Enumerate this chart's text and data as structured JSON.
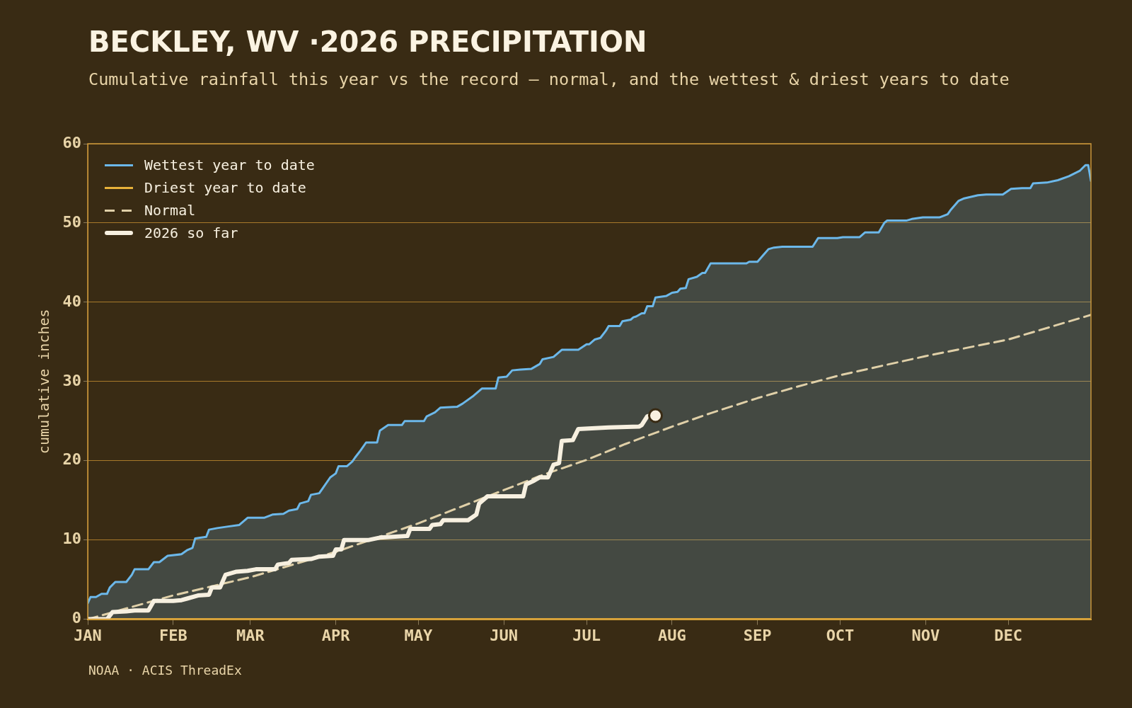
{
  "chart_data": {
    "type": "line",
    "title": "BECKLEY, WV ·2026 PRECIPITATION",
    "subtitle": "Cumulative rainfall this year vs the record — normal, and the wettest & driest years to date",
    "ylabel": "cumulative inches",
    "xlim": [
      "--01-01",
      "--12-31"
    ],
    "xticks": [
      {
        "value": "--01-01",
        "label": "JAN"
      },
      {
        "value": "--02-01",
        "label": "FEB"
      },
      {
        "value": "--03-01",
        "label": "MAR"
      },
      {
        "value": "--04-01",
        "label": "APR"
      },
      {
        "value": "--05-01",
        "label": "MAY"
      },
      {
        "value": "--06-01",
        "label": "JUN"
      },
      {
        "value": "--07-01",
        "label": "JUL"
      },
      {
        "value": "--08-01",
        "label": "AUG"
      },
      {
        "value": "--09-01",
        "label": "SEP"
      },
      {
        "value": "--10-01",
        "label": "OCT"
      },
      {
        "value": "--11-01",
        "label": "NOV"
      },
      {
        "value": "--12-01",
        "label": "DEC"
      }
    ],
    "ylim": [
      0,
      60
    ],
    "yticks": [
      0,
      10,
      20,
      30,
      40,
      50,
      60
    ],
    "grid": "y",
    "legend": "top left",
    "annotations": [
      "NOAA · ACIS ThreadEx"
    ],
    "series": [
      {
        "name": "Wettest year to date",
        "type": "area",
        "color": "#6cb8ea",
        "x": [
          "--01-01",
          "--01-02",
          "--01-04",
          "--01-06",
          "--01-08",
          "--01-09",
          "--01-11",
          "--01-15",
          "--01-17",
          "--01-18",
          "--01-23",
          "--01-25",
          "--01-27",
          "--01-30",
          "--02-04",
          "--02-06",
          "--02-08",
          "--02-09",
          "--02-13",
          "--02-14",
          "--02-17",
          "--02-21",
          "--02-25",
          "--02-28",
          "--03-06",
          "--03-09",
          "--03-13",
          "--03-15",
          "--03-18",
          "--03-19",
          "--03-22",
          "--03-23",
          "--03-26",
          "--03-27",
          "--03-30",
          "--04-01",
          "--04-02",
          "--04-05",
          "--04-07",
          "--04-08",
          "--04-10",
          "--04-12",
          "--04-16",
          "--04-17",
          "--04-20",
          "--04-25",
          "--04-26",
          "--05-03",
          "--05-04",
          "--05-07",
          "--05-09",
          "--05-15",
          "--05-17",
          "--05-21",
          "--05-24",
          "--05-29",
          "--05-30",
          "--06-02",
          "--06-04",
          "--06-07",
          "--06-11",
          "--06-14",
          "--06-15",
          "--06-19",
          "--06-22",
          "--06-28",
          "--07-01",
          "--07-02",
          "--07-04",
          "--07-06",
          "--07-08",
          "--07-09",
          "--07-13",
          "--07-14",
          "--07-17",
          "--07-18",
          "--07-19",
          "--07-21",
          "--07-22",
          "--07-23",
          "--07-25",
          "--07-26",
          "--07-30",
          "--08-01",
          "--08-03",
          "--08-04",
          "--08-06",
          "--08-07",
          "--08-10",
          "--08-12",
          "--08-13",
          "--08-15",
          "--08-28",
          "--08-29",
          "--09-01",
          "--09-03",
          "--09-05",
          "--09-07",
          "--09-10",
          "--09-21",
          "--09-23",
          "--09-30",
          "--10-02",
          "--10-08",
          "--10-10",
          "--10-15",
          "--10-17",
          "--10-18",
          "--10-25",
          "--10-27",
          "--10-31",
          "--11-06",
          "--11-09",
          "--11-10",
          "--11-13",
          "--11-15",
          "--11-20",
          "--11-23",
          "--11-29",
          "--12-02",
          "--12-06",
          "--12-09",
          "--12-10",
          "--12-15",
          "--12-19",
          "--12-23",
          "--12-27",
          "--12-29",
          "--12-30",
          "--12-31"
        ],
        "values": [
          2.0,
          2.8,
          2.8,
          3.2,
          3.2,
          4.0,
          4.7,
          4.7,
          5.6,
          6.3,
          6.3,
          7.2,
          7.2,
          8.0,
          8.2,
          8.7,
          9.0,
          10.2,
          10.4,
          11.3,
          11.5,
          11.7,
          11.9,
          12.8,
          12.8,
          13.2,
          13.3,
          13.7,
          13.9,
          14.6,
          14.9,
          15.7,
          15.9,
          16.4,
          17.9,
          18.4,
          19.3,
          19.3,
          19.9,
          20.4,
          21.3,
          22.3,
          22.3,
          23.8,
          24.5,
          24.5,
          25.0,
          25.0,
          25.6,
          26.1,
          26.7,
          26.8,
          27.2,
          28.2,
          29.1,
          29.1,
          30.5,
          30.6,
          31.4,
          31.5,
          31.6,
          32.2,
          32.8,
          33.1,
          34.0,
          34.0,
          34.7,
          34.7,
          35.3,
          35.5,
          36.4,
          37.0,
          37.0,
          37.6,
          37.8,
          38.1,
          38.2,
          38.6,
          38.6,
          39.5,
          39.5,
          40.6,
          40.8,
          41.2,
          41.3,
          41.7,
          41.8,
          42.9,
          43.2,
          43.7,
          43.7,
          44.9,
          44.9,
          45.1,
          45.1,
          45.9,
          46.7,
          46.9,
          47.0,
          47.0,
          48.1,
          48.1,
          48.2,
          48.2,
          48.8,
          48.8,
          50.0,
          50.3,
          50.3,
          50.5,
          50.7,
          50.7,
          51.1,
          51.6,
          52.8,
          53.1,
          53.5,
          53.6,
          53.6,
          54.3,
          54.4,
          54.4,
          55.0,
          55.1,
          55.4,
          55.9,
          56.6,
          57.3,
          57.3,
          55.3
        ]
      },
      {
        "name": "Driest year to date",
        "color": "#e8b23a",
        "x": [
          "--01-01",
          "--12-31"
        ],
        "values": [
          0,
          0
        ]
      },
      {
        "name": "Normal",
        "line_style": "dashed",
        "color": "#e0d0a8",
        "x": [
          "--01-01",
          "--02-01",
          "--03-01",
          "--04-01",
          "--05-01",
          "--06-01",
          "--06-15",
          "--07-01",
          "--07-15",
          "--08-01",
          "--08-15",
          "--09-01",
          "--09-15",
          "--10-01",
          "--11-01",
          "--12-01",
          "--12-31"
        ],
        "values": [
          0,
          3.0,
          5.3,
          8.5,
          12.1,
          16.3,
          18.2,
          20.1,
          22.1,
          24.3,
          26.0,
          27.9,
          29.3,
          30.8,
          33.2,
          35.3,
          38.4
        ]
      },
      {
        "name": "2026 so far",
        "color": "#f7f0e0",
        "x": [
          "--01-01",
          "--01-08",
          "--01-10",
          "--01-15",
          "--01-18",
          "--01-23",
          "--01-25",
          "--02-01",
          "--02-04",
          "--02-06",
          "--02-10",
          "--02-14",
          "--02-15",
          "--02-18",
          "--02-20",
          "--02-24",
          "--02-28",
          "--03-03",
          "--03-10",
          "--03-11",
          "--03-15",
          "--03-16",
          "--03-23",
          "--03-26",
          "--03-31",
          "--04-01",
          "--04-03",
          "--04-04",
          "--04-13",
          "--04-17",
          "--04-27",
          "--04-28",
          "--05-05",
          "--05-06",
          "--05-09",
          "--05-10",
          "--05-19",
          "--05-22",
          "--05-23",
          "--05-26",
          "--06-01",
          "--06-08",
          "--06-09",
          "--06-12",
          "--06-14",
          "--06-17",
          "--06-19",
          "--06-21",
          "--06-22",
          "--06-26",
          "--06-28",
          "--07-09",
          "--07-20",
          "--07-21",
          "--07-23",
          "--07-25",
          "--07-26"
        ],
        "values": [
          0,
          0,
          0.9,
          1.0,
          1.1,
          1.1,
          2.3,
          2.3,
          2.4,
          2.6,
          3.0,
          3.1,
          4.0,
          4.0,
          5.6,
          6.0,
          6.1,
          6.3,
          6.3,
          6.9,
          7.1,
          7.5,
          7.6,
          7.9,
          8.0,
          8.8,
          8.8,
          10.0,
          10.0,
          10.3,
          10.5,
          11.4,
          11.4,
          11.9,
          12.0,
          12.5,
          12.5,
          13.2,
          14.6,
          15.5,
          15.5,
          15.5,
          17.0,
          17.5,
          17.9,
          17.9,
          19.5,
          19.7,
          22.5,
          22.6,
          24.0,
          24.2,
          24.3,
          24.5,
          25.6,
          25.8,
          25.7
        ]
      },
      {
        "type": "scatter",
        "marker": "circle",
        "color": "#f7f0e0",
        "x": [
          "--07-26"
        ],
        "values": [
          25.7
        ]
      }
    ]
  }
}
